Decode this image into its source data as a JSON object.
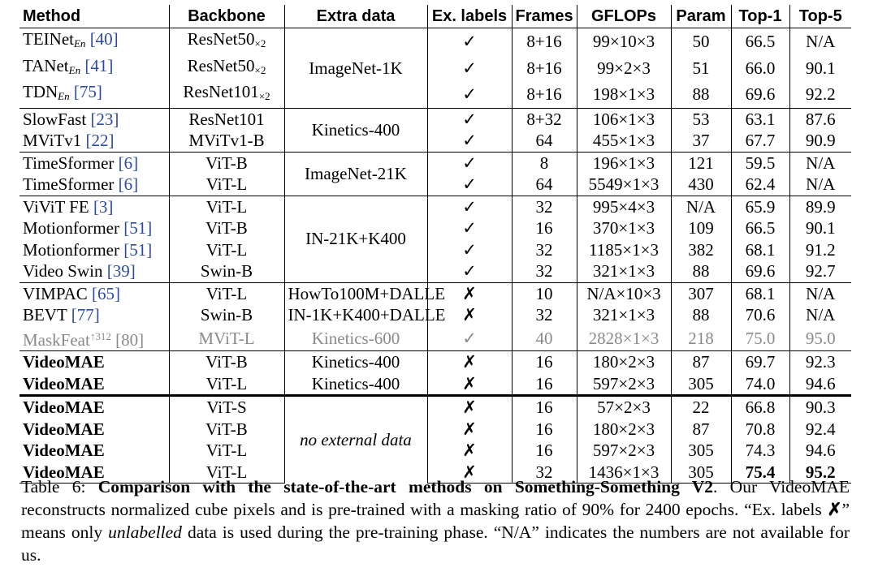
{
  "headers": [
    "Method",
    "Backbone",
    "Extra data",
    "Ex. labels",
    "Frames",
    "GFLOPs",
    "Param",
    "Top-1",
    "Top-5"
  ],
  "symbols": {
    "check": "✓",
    "cross": "✗"
  },
  "groups": [
    {
      "extra": "ImageNet-1K",
      "rows": [
        {
          "method": "TEINet",
          "method_sub": "En",
          "cite": "[40]",
          "backbone": "ResNet50",
          "backbone_sub": "×2",
          "labels": "✓",
          "frames": "8+16",
          "gflops": "99×10×3",
          "param": "50",
          "top1": "66.5",
          "top5": "N/A"
        },
        {
          "method": "TANet",
          "method_sub": "En",
          "cite": "[41]",
          "backbone": "ResNet50",
          "backbone_sub": "×2",
          "labels": "✓",
          "frames": "8+16",
          "gflops": "99×2×3",
          "param": "51",
          "top1": "66.0",
          "top5": "90.1"
        },
        {
          "method": "TDN",
          "method_sub": "En",
          "cite": "[75]",
          "backbone": "ResNet101",
          "backbone_sub": "×2",
          "labels": "✓",
          "frames": "8+16",
          "gflops": "198×1×3",
          "param": "88",
          "top1": "69.6",
          "top5": "92.2"
        }
      ]
    },
    {
      "extra": "Kinetics-400",
      "rows": [
        {
          "method": "SlowFast",
          "cite": "[23]",
          "backbone": "ResNet101",
          "labels": "✓",
          "frames": "8+32",
          "gflops": "106×1×3",
          "param": "53",
          "top1": "63.1",
          "top5": "87.6"
        },
        {
          "method": "MViTv1",
          "cite": "[22]",
          "backbone": "MViTv1-B",
          "labels": "✓",
          "frames": "64",
          "gflops": "455×1×3",
          "param": "37",
          "top1": "67.7",
          "top5": "90.9"
        }
      ]
    },
    {
      "extra": "ImageNet-21K",
      "rows": [
        {
          "method": "TimeSformer",
          "cite": "[6]",
          "backbone": "ViT-B",
          "labels": "✓",
          "frames": "8",
          "gflops": "196×1×3",
          "param": "121",
          "top1": "59.5",
          "top5": "N/A"
        },
        {
          "method": "TimeSformer",
          "cite": "[6]",
          "backbone": "ViT-L",
          "labels": "✓",
          "frames": "64",
          "gflops": "5549×1×3",
          "param": "430",
          "top1": "62.4",
          "top5": "N/A"
        }
      ]
    },
    {
      "extra": "IN-21K+K400",
      "rows": [
        {
          "method": "ViViT FE",
          "cite": "[3]",
          "backbone": "ViT-L",
          "labels": "✓",
          "frames": "32",
          "gflops": "995×4×3",
          "param": "N/A",
          "top1": "65.9",
          "top5": "89.9"
        },
        {
          "method": "Motionformer",
          "cite": "[51]",
          "backbone": "ViT-B",
          "labels": "✓",
          "frames": "16",
          "gflops": "370×1×3",
          "param": "109",
          "top1": "66.5",
          "top5": "90.1"
        },
        {
          "method": "Motionformer",
          "cite": "[51]",
          "backbone": "ViT-L",
          "labels": "✓",
          "frames": "32",
          "gflops": "1185×1×3",
          "param": "382",
          "top1": "68.1",
          "top5": "91.2"
        },
        {
          "method": "Video Swin",
          "cite": "[39]",
          "backbone": "Swin-B",
          "labels": "✓",
          "frames": "32",
          "gflops": "321×1×3",
          "param": "88",
          "top1": "69.6",
          "top5": "92.7"
        }
      ]
    },
    {
      "rows": [
        {
          "method": "VIMPAC",
          "cite": "[65]",
          "backbone": "ViT-L",
          "extra": "HowTo100M+DALLE",
          "labels": "✗",
          "frames": "10",
          "gflops": "N/A×10×3",
          "param": "307",
          "top1": "68.1",
          "top5": "N/A"
        },
        {
          "method": "BEVT",
          "cite": "[77]",
          "backbone": "Swin-B",
          "extra": "IN-1K+K400+DALLE",
          "labels": "✗",
          "frames": "32",
          "gflops": "321×1×3",
          "param": "88",
          "top1": "70.6",
          "top5": "N/A"
        },
        {
          "method": "MaskFeat",
          "method_sup": "↑312",
          "cite": "[80]",
          "backbone": "MViT-L",
          "extra": "Kinetics-600",
          "labels": "✓",
          "frames": "40",
          "gflops": "2828×1×3",
          "param": "218",
          "top1": "75.0",
          "top5": "95.0",
          "gray": true
        }
      ]
    },
    {
      "rows": [
        {
          "method": "VideoMAE",
          "backbone": "ViT-B",
          "extra": "Kinetics-400",
          "labels": "✗",
          "frames": "16",
          "gflops": "180×2×3",
          "param": "87",
          "top1": "69.7",
          "top5": "92.3",
          "bold_method": true
        },
        {
          "method": "VideoMAE",
          "backbone": "ViT-L",
          "extra": "Kinetics-400",
          "labels": "✗",
          "frames": "16",
          "gflops": "597×2×3",
          "param": "305",
          "top1": "74.0",
          "top5": "94.6",
          "bold_method": true
        }
      ]
    },
    {
      "extra": "no external data",
      "extra_italic": true,
      "thick": true,
      "rows": [
        {
          "method": "VideoMAE",
          "backbone": "ViT-S",
          "labels": "✗",
          "frames": "16",
          "gflops": "57×2×3",
          "param": "22",
          "top1": "66.8",
          "top5": "90.3",
          "bold_method": true
        },
        {
          "method": "VideoMAE",
          "backbone": "ViT-B",
          "labels": "✗",
          "frames": "16",
          "gflops": "180×2×3",
          "param": "87",
          "top1": "70.8",
          "top5": "92.4",
          "bold_method": true
        },
        {
          "method": "VideoMAE",
          "backbone": "ViT-L",
          "labels": "✗",
          "frames": "16",
          "gflops": "597×2×3",
          "param": "305",
          "top1": "74.3",
          "top5": "94.6",
          "bold_method": true
        },
        {
          "method": "VideoMAE",
          "backbone": "ViT-L",
          "labels": "✗",
          "frames": "32",
          "gflops": "1436×1×3",
          "param": "305",
          "top1": "75.4",
          "top5": "95.2",
          "bold_method": true,
          "bold_top": true
        }
      ]
    }
  ],
  "caption": {
    "label": "Table 6: ",
    "title": "Comparison with the state-of-the-art methods on Something-Something V2",
    "p1": ". Our VideoMAE reconstructs normalized cube pixels and is pre-trained with a masking ratio of 90% for 2400 epochs. “Ex. labels ",
    "cross": "✗",
    "p2": "” means only ",
    "unlabelled": "unlabelled",
    "p3": " data is used during the pre-training phase. “N/A” indicates the numbers are not available for us."
  }
}
